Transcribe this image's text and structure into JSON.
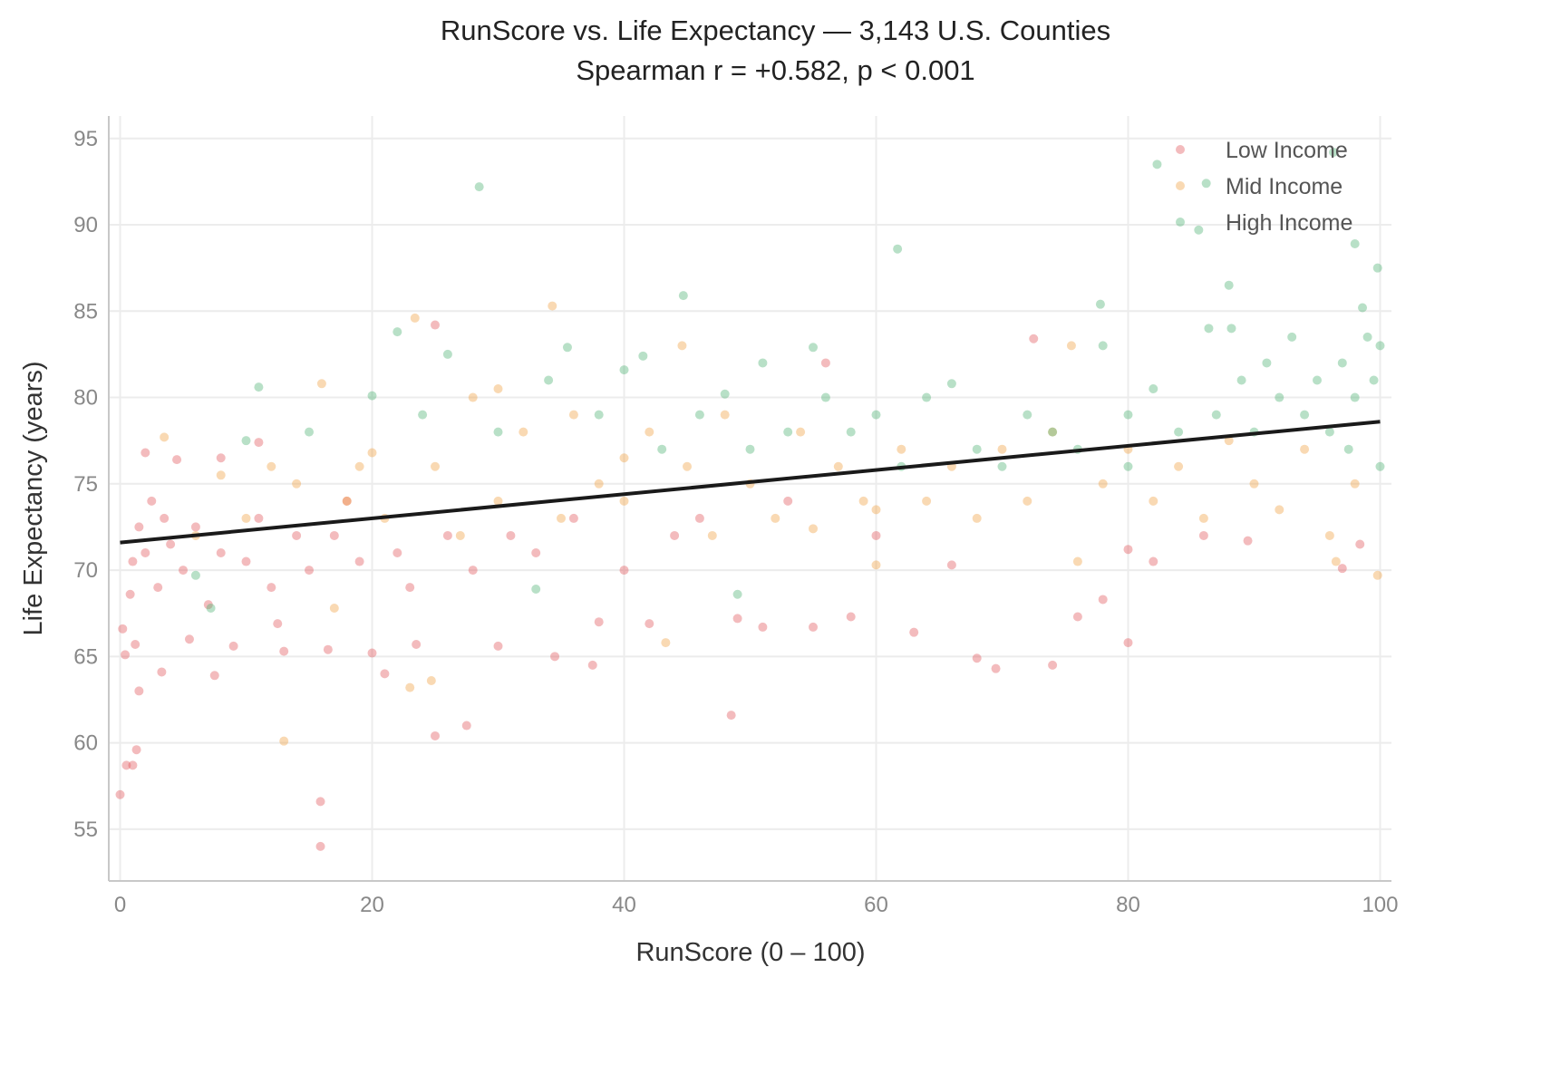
{
  "chart_data": {
    "type": "scatter",
    "title": "RunScore vs. Life Expectancy  —  3,143 U.S. Counties",
    "subtitle": "Spearman r = +0.582,  p < 0.001",
    "xlabel": "RunScore (0 – 100)",
    "ylabel": "Life Expectancy (years)",
    "xlim": [
      -0.9,
      100.9
    ],
    "ylim": [
      52,
      96.3
    ],
    "xticks": [
      0,
      20,
      40,
      60,
      80,
      100
    ],
    "yticks": [
      55,
      60,
      65,
      70,
      75,
      80,
      85,
      90,
      95
    ],
    "grid": true,
    "legend_position": "top-right",
    "trend_line": {
      "x": [
        0,
        100
      ],
      "y": [
        71.6,
        78.6
      ],
      "color": "#1a1a1a"
    },
    "series": [
      {
        "name": "Low Income",
        "color": "#e0565a",
        "points": [
          [
            0,
            57
          ],
          [
            0.5,
            58.7
          ],
          [
            1,
            58.7
          ],
          [
            1.3,
            59.6
          ],
          [
            1.5,
            63
          ],
          [
            3.3,
            64.1
          ],
          [
            0.2,
            66.6
          ],
          [
            0.4,
            65.1
          ],
          [
            1.2,
            65.7
          ],
          [
            0.8,
            68.6
          ],
          [
            1,
            70.5
          ],
          [
            1.5,
            72.5
          ],
          [
            2,
            71
          ],
          [
            2.5,
            74
          ],
          [
            3,
            69
          ],
          [
            3.5,
            73
          ],
          [
            4,
            71.5
          ],
          [
            5,
            70
          ],
          [
            5.5,
            66
          ],
          [
            6,
            72.5
          ],
          [
            7,
            68
          ],
          [
            7.5,
            63.9
          ],
          [
            8,
            71
          ],
          [
            9,
            65.6
          ],
          [
            10,
            70.5
          ],
          [
            11,
            73
          ],
          [
            12,
            69
          ],
          [
            12.5,
            66.9
          ],
          [
            13,
            65.3
          ],
          [
            14,
            72
          ],
          [
            15,
            70
          ],
          [
            15.9,
            56.6
          ],
          [
            15.9,
            54
          ],
          [
            16.5,
            65.4
          ],
          [
            17,
            72
          ],
          [
            18,
            74
          ],
          [
            19,
            70.5
          ],
          [
            20,
            65.2
          ],
          [
            21,
            64
          ],
          [
            22,
            71
          ],
          [
            23,
            69
          ],
          [
            23.5,
            65.7
          ],
          [
            25,
            60.4
          ],
          [
            25,
            84.2
          ],
          [
            26,
            72
          ],
          [
            27.5,
            61
          ],
          [
            28,
            70
          ],
          [
            30,
            65.6
          ],
          [
            31,
            72
          ],
          [
            33,
            71
          ],
          [
            34.5,
            65
          ],
          [
            36,
            73
          ],
          [
            37.5,
            64.5
          ],
          [
            38,
            67
          ],
          [
            40,
            70
          ],
          [
            42,
            66.9
          ],
          [
            44,
            72
          ],
          [
            46,
            73
          ],
          [
            48.5,
            61.6
          ],
          [
            49,
            67.2
          ],
          [
            51,
            66.7
          ],
          [
            53,
            74
          ],
          [
            55,
            66.7
          ],
          [
            56,
            82
          ],
          [
            58,
            67.3
          ],
          [
            60,
            72
          ],
          [
            63,
            66.4
          ],
          [
            66,
            70.3
          ],
          [
            68,
            64.9
          ],
          [
            69.5,
            64.3
          ],
          [
            72.5,
            83.4
          ],
          [
            74,
            64.5
          ],
          [
            76,
            67.3
          ],
          [
            78,
            68.3
          ],
          [
            80,
            65.8
          ],
          [
            80,
            71.2
          ],
          [
            82,
            70.5
          ],
          [
            86,
            72
          ],
          [
            89.5,
            71.7
          ],
          [
            97,
            70.1
          ],
          [
            98.4,
            71.5
          ],
          [
            2,
            76.8
          ],
          [
            4.5,
            76.4
          ],
          [
            8,
            76.5
          ],
          [
            11,
            77.4
          ]
        ]
      },
      {
        "name": "Mid Income",
        "color": "#f0a040",
        "points": [
          [
            3.5,
            77.7
          ],
          [
            6,
            72
          ],
          [
            8,
            75.5
          ],
          [
            10,
            73
          ],
          [
            12,
            76
          ],
          [
            13,
            60.1
          ],
          [
            14,
            75
          ],
          [
            16,
            80.8
          ],
          [
            17,
            67.8
          ],
          [
            18,
            74
          ],
          [
            19,
            76
          ],
          [
            21,
            73
          ],
          [
            23,
            63.2
          ],
          [
            23.4,
            84.6
          ],
          [
            24.7,
            63.6
          ],
          [
            25,
            76
          ],
          [
            27,
            72
          ],
          [
            28,
            80
          ],
          [
            30,
            74
          ],
          [
            32,
            78
          ],
          [
            34.3,
            85.3
          ],
          [
            35,
            73
          ],
          [
            36,
            79
          ],
          [
            38,
            75
          ],
          [
            40,
            74
          ],
          [
            42,
            78
          ],
          [
            43.3,
            65.8
          ],
          [
            44.6,
            83
          ],
          [
            45,
            76
          ],
          [
            47,
            72
          ],
          [
            48,
            79
          ],
          [
            50,
            75
          ],
          [
            52,
            73
          ],
          [
            54,
            78
          ],
          [
            55,
            72.4
          ],
          [
            57,
            76
          ],
          [
            59,
            74
          ],
          [
            60,
            70.3
          ],
          [
            62,
            77
          ],
          [
            64,
            74
          ],
          [
            66,
            76
          ],
          [
            68,
            73
          ],
          [
            70,
            77
          ],
          [
            72,
            74
          ],
          [
            74,
            78
          ],
          [
            75.5,
            83
          ],
          [
            76,
            70.5
          ],
          [
            78,
            75
          ],
          [
            80,
            77
          ],
          [
            82,
            74
          ],
          [
            84,
            76
          ],
          [
            86,
            73
          ],
          [
            88,
            77.5
          ],
          [
            90,
            75
          ],
          [
            92,
            73.5
          ],
          [
            94,
            77
          ],
          [
            96,
            72
          ],
          [
            96.5,
            70.5
          ],
          [
            98,
            75
          ],
          [
            99.8,
            69.7
          ],
          [
            30,
            80.5
          ],
          [
            40,
            76.5
          ],
          [
            60,
            73.5
          ],
          [
            20,
            76.8
          ]
        ]
      },
      {
        "name": "High Income",
        "color": "#4db173",
        "points": [
          [
            6,
            69.7
          ],
          [
            7.2,
            67.8
          ],
          [
            10,
            77.5
          ],
          [
            11,
            80.6
          ],
          [
            15,
            78
          ],
          [
            20,
            80.1
          ],
          [
            22,
            83.8
          ],
          [
            24,
            79
          ],
          [
            26,
            82.5
          ],
          [
            28.5,
            92.2
          ],
          [
            30,
            78
          ],
          [
            33,
            68.9
          ],
          [
            34,
            81
          ],
          [
            35.5,
            82.9
          ],
          [
            38,
            79
          ],
          [
            40,
            81.6
          ],
          [
            41.5,
            82.4
          ],
          [
            43,
            77
          ],
          [
            44.7,
            85.9
          ],
          [
            46,
            79
          ],
          [
            48,
            80.2
          ],
          [
            49,
            68.6
          ],
          [
            50,
            77
          ],
          [
            51,
            82
          ],
          [
            53,
            78
          ],
          [
            55,
            82.9
          ],
          [
            56,
            80
          ],
          [
            58,
            78
          ],
          [
            60,
            79
          ],
          [
            61.7,
            88.6
          ],
          [
            62,
            76
          ],
          [
            64,
            80
          ],
          [
            66,
            80.8
          ],
          [
            68,
            77
          ],
          [
            70,
            76
          ],
          [
            72,
            79
          ],
          [
            74,
            78
          ],
          [
            76,
            77
          ],
          [
            77.8,
            85.4
          ],
          [
            78,
            83
          ],
          [
            80,
            79
          ],
          [
            80,
            76
          ],
          [
            82,
            80.5
          ],
          [
            82.3,
            93.5
          ],
          [
            84,
            78
          ],
          [
            85.6,
            89.7
          ],
          [
            86.2,
            92.4
          ],
          [
            86.4,
            84
          ],
          [
            87,
            79
          ],
          [
            88,
            86.5
          ],
          [
            88.2,
            84
          ],
          [
            89,
            81
          ],
          [
            90,
            78
          ],
          [
            91,
            82
          ],
          [
            92,
            80
          ],
          [
            93,
            83.5
          ],
          [
            94,
            79
          ],
          [
            95,
            81
          ],
          [
            96,
            78
          ],
          [
            96.3,
            94.2
          ],
          [
            97,
            82
          ],
          [
            98,
            88.9
          ],
          [
            98,
            80
          ],
          [
            98.6,
            85.2
          ],
          [
            99,
            83.5
          ],
          [
            99.5,
            81
          ],
          [
            99.8,
            87.5
          ],
          [
            100,
            76
          ],
          [
            100,
            83
          ],
          [
            97.5,
            77
          ]
        ]
      }
    ]
  }
}
